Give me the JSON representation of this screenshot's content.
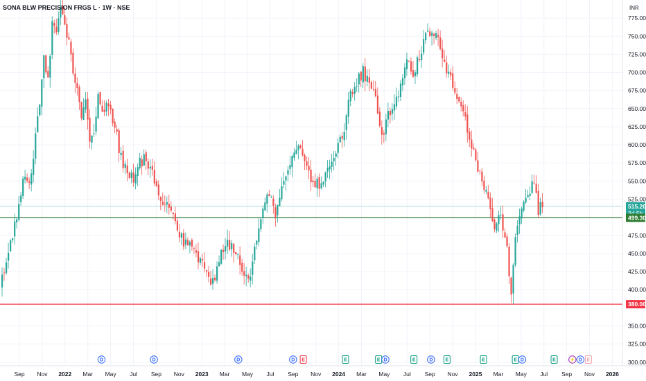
{
  "header": {
    "title": "SONA BLW PRECISION FRGS L · 1W · NSE",
    "currency": "INR"
  },
  "colors": {
    "up": "#26a69a",
    "down": "#ef5350",
    "support": "#089981",
    "supportLine": "#2e7d32",
    "resistance": "#f23645",
    "priceLine": "#26a69a",
    "grid": "#f0f3fa",
    "dividend": "#2962ff",
    "earnings_pos": "#089981",
    "earnings_neg": "#f23645",
    "split": "#9c27b0"
  },
  "chart_data": {
    "type": "candlestick",
    "y_axis_ticks": [
      "775.00",
      "750.00",
      "725.00",
      "700.00",
      "675.00",
      "650.00",
      "625.00",
      "600.00",
      "575.00",
      "550.00",
      "525.00",
      "475.00",
      "450.00",
      "425.00",
      "400.00",
      "350.00",
      "325.00",
      "300.00"
    ],
    "ylim": [
      295,
      800
    ],
    "x_axis_ticks": [
      {
        "label": "Sep",
        "year": false
      },
      {
        "label": "Nov",
        "year": false
      },
      {
        "label": "2022",
        "year": true
      },
      {
        "label": "Mar",
        "year": false
      },
      {
        "label": "May",
        "year": false
      },
      {
        "label": "Jul",
        "year": false
      },
      {
        "label": "Sep",
        "year": false
      },
      {
        "label": "Nov",
        "year": false
      },
      {
        "label": "2023",
        "year": true
      },
      {
        "label": "Mar",
        "year": false
      },
      {
        "label": "May",
        "year": false
      },
      {
        "label": "Jul",
        "year": false
      },
      {
        "label": "Sep",
        "year": false
      },
      {
        "label": "Nov",
        "year": false
      },
      {
        "label": "2024",
        "year": true
      },
      {
        "label": "Mar",
        "year": false
      },
      {
        "label": "May",
        "year": false
      },
      {
        "label": "Jul",
        "year": false
      },
      {
        "label": "Sep",
        "year": false
      },
      {
        "label": "Nov",
        "year": false
      },
      {
        "label": "2025",
        "year": true
      },
      {
        "label": "Mar",
        "year": false
      },
      {
        "label": "May",
        "year": false
      },
      {
        "label": "Jul",
        "year": false
      },
      {
        "label": "Sep",
        "year": false
      },
      {
        "label": "Nov",
        "year": false
      },
      {
        "label": "2026",
        "year": true
      }
    ],
    "price_labels": [
      {
        "price": 515.2,
        "label": "515.20",
        "sub": "3d 5h",
        "kind": "current"
      },
      {
        "price": 499.3,
        "label": "499.30",
        "kind": "support"
      },
      {
        "price": 380.0,
        "label": "380.00",
        "kind": "resistance"
      }
    ],
    "series_anchors": [
      [
        0,
        405
      ],
      [
        3,
        440
      ],
      [
        6,
        470
      ],
      [
        9,
        520
      ],
      [
        12,
        560
      ],
      [
        14,
        545
      ],
      [
        17,
        610
      ],
      [
        19,
        660
      ],
      [
        21,
        720
      ],
      [
        23,
        690
      ],
      [
        25,
        770
      ],
      [
        27,
        750
      ],
      [
        29,
        785
      ],
      [
        31,
        760
      ],
      [
        33,
        740
      ],
      [
        35,
        700
      ],
      [
        37,
        680
      ],
      [
        39,
        640
      ],
      [
        41,
        660
      ],
      [
        43,
        605
      ],
      [
        45,
        620
      ],
      [
        47,
        665
      ],
      [
        49,
        650
      ],
      [
        52,
        660
      ],
      [
        55,
        625
      ],
      [
        58,
        580
      ],
      [
        61,
        560
      ],
      [
        64,
        555
      ],
      [
        67,
        575
      ],
      [
        70,
        580
      ],
      [
        73,
        560
      ],
      [
        76,
        532
      ],
      [
        79,
        522
      ],
      [
        82,
        515
      ],
      [
        85,
        475
      ],
      [
        88,
        468
      ],
      [
        91,
        465
      ],
      [
        94,
        450
      ],
      [
        97,
        440
      ],
      [
        99,
        420
      ],
      [
        101,
        412
      ],
      [
        103,
        420
      ],
      [
        105,
        445
      ],
      [
        108,
        465
      ],
      [
        111,
        462
      ],
      [
        114,
        445
      ],
      [
        117,
        418
      ],
      [
        120,
        422
      ],
      [
        123,
        470
      ],
      [
        126,
        520
      ],
      [
        129,
        535
      ],
      [
        132,
        508
      ],
      [
        135,
        540
      ],
      [
        138,
        570
      ],
      [
        141,
        595
      ],
      [
        144,
        590
      ],
      [
        147,
        570
      ],
      [
        150,
        550
      ],
      [
        153,
        545
      ],
      [
        156,
        560
      ],
      [
        159,
        570
      ],
      [
        162,
        600
      ],
      [
        165,
        625
      ],
      [
        168,
        670
      ],
      [
        171,
        690
      ],
      [
        174,
        700
      ],
      [
        177,
        685
      ],
      [
        180,
        660
      ],
      [
        183,
        610
      ],
      [
        186,
        640
      ],
      [
        189,
        650
      ],
      [
        192,
        685
      ],
      [
        195,
        710
      ],
      [
        198,
        700
      ],
      [
        201,
        720
      ],
      [
        204,
        750
      ],
      [
        207,
        760
      ],
      [
        210,
        745
      ],
      [
        213,
        715
      ],
      [
        216,
        690
      ],
      [
        219,
        670
      ],
      [
        222,
        648
      ],
      [
        225,
        610
      ],
      [
        228,
        580
      ],
      [
        231,
        548
      ],
      [
        234,
        520
      ],
      [
        237,
        490
      ],
      [
        240,
        500
      ],
      [
        243,
        460
      ],
      [
        245,
        392
      ],
      [
        247,
        480
      ],
      [
        250,
        520
      ],
      [
        253,
        535
      ],
      [
        256,
        545
      ],
      [
        258,
        510
      ],
      [
        259,
        515
      ]
    ],
    "series_seed": 20220501,
    "candle_count": 260
  },
  "events": [
    {
      "type": "D",
      "tx": 3.6
    },
    {
      "type": "D",
      "tx": 5.9
    },
    {
      "type": "D",
      "tx": 9.6
    },
    {
      "type": "D",
      "tx": 12.0
    },
    {
      "type": "E",
      "tx": 12.45,
      "tone": "neg"
    },
    {
      "type": "E",
      "tx": 14.3,
      "tone": "pos"
    },
    {
      "type": "E",
      "tx": 15.75,
      "tone": "pos"
    },
    {
      "type": "D",
      "tx": 16.05
    },
    {
      "type": "E",
      "tx": 17.3,
      "tone": "pos"
    },
    {
      "type": "D",
      "tx": 18.05
    },
    {
      "type": "E",
      "tx": 18.75,
      "tone": "pos"
    },
    {
      "type": "E",
      "tx": 20.35,
      "tone": "pos"
    },
    {
      "type": "E",
      "tx": 21.75,
      "tone": "pos"
    },
    {
      "type": "D",
      "tx": 22.05
    },
    {
      "type": "E",
      "tx": 23.45,
      "tone": "pos"
    },
    {
      "type": "S",
      "tx": 24.25
    },
    {
      "type": "D",
      "tx": 24.6
    },
    {
      "type": "E",
      "tx": 24.95,
      "tone": "neg-light"
    }
  ]
}
